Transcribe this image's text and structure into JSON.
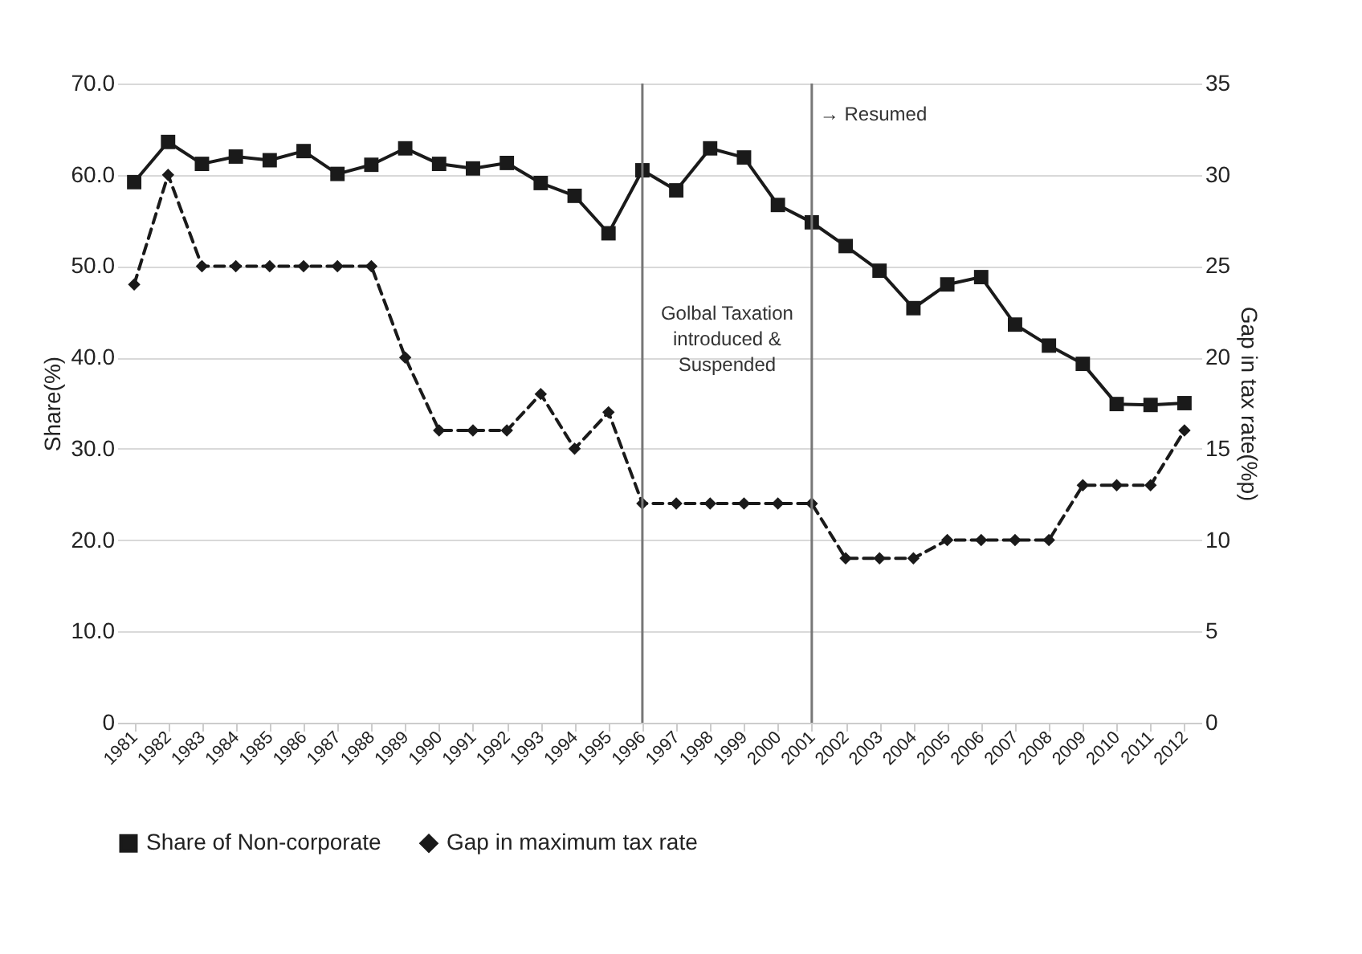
{
  "chart_data": {
    "type": "line",
    "categories": [
      "1981",
      "1982",
      "1983",
      "1984",
      "1985",
      "1986",
      "1987",
      "1988",
      "1989",
      "1990",
      "1991",
      "1992",
      "1993",
      "1994",
      "1995",
      "1996",
      "1997",
      "1998",
      "1999",
      "2000",
      "2001",
      "2002",
      "2003",
      "2004",
      "2005",
      "2006",
      "2007",
      "2008",
      "2009",
      "2010",
      "2011",
      "2012"
    ],
    "series": [
      {
        "name": "Share of Non-corporate",
        "color": "#1a1a1a",
        "marker": "square",
        "line_style": "solid",
        "values": [
          59.2,
          63.6,
          61.2,
          62.0,
          61.6,
          62.6,
          60.1,
          61.1,
          62.9,
          61.2,
          60.7,
          61.3,
          59.1,
          57.7,
          53.6,
          60.5,
          58.3,
          62.9,
          61.9,
          56.7,
          54.8,
          52.2,
          49.5,
          45.4,
          48.0,
          48.8,
          43.6,
          41.3,
          39.3,
          34.9,
          34.8,
          35.0
        ]
      },
      {
        "name": "Gap in maximum tax rate",
        "color": "#1a1a1a",
        "marker": "diamond",
        "line_style": "dashed",
        "axis": "y2",
        "values": [
          24,
          30,
          25,
          25,
          25,
          25,
          25,
          25,
          20,
          16,
          16,
          16,
          18,
          15,
          17,
          12,
          12,
          12,
          12,
          12,
          12,
          9,
          9,
          9,
          10,
          10,
          10,
          10,
          13,
          13,
          13,
          16
        ]
      }
    ],
    "ylabel": "Share(%)",
    "y2label": "Gap in tax rate(%p)",
    "ylim": [
      0,
      70
    ],
    "yticks": [
      {
        "value": 0,
        "label": "0"
      },
      {
        "value": 10,
        "label": "10.0"
      },
      {
        "value": 20,
        "label": "20.0"
      },
      {
        "value": 30,
        "label": "30.0"
      },
      {
        "value": 40,
        "label": "40.0"
      },
      {
        "value": 50,
        "label": "50.0"
      },
      {
        "value": 60,
        "label": "60.0"
      },
      {
        "value": 70,
        "label": "70.0"
      }
    ],
    "y2lim": [
      0,
      35
    ],
    "y2ticks": [
      0,
      5,
      10,
      15,
      20,
      25,
      30,
      35
    ],
    "ref_lines": [
      {
        "axis": "x",
        "value": "1996",
        "label": "Golbal Taxation introduced & Suspended",
        "color": "#777777"
      },
      {
        "axis": "x",
        "value": "2001",
        "label": "→ Resumed",
        "color": "#777777"
      }
    ],
    "grid": "y",
    "legend": "bottom"
  }
}
